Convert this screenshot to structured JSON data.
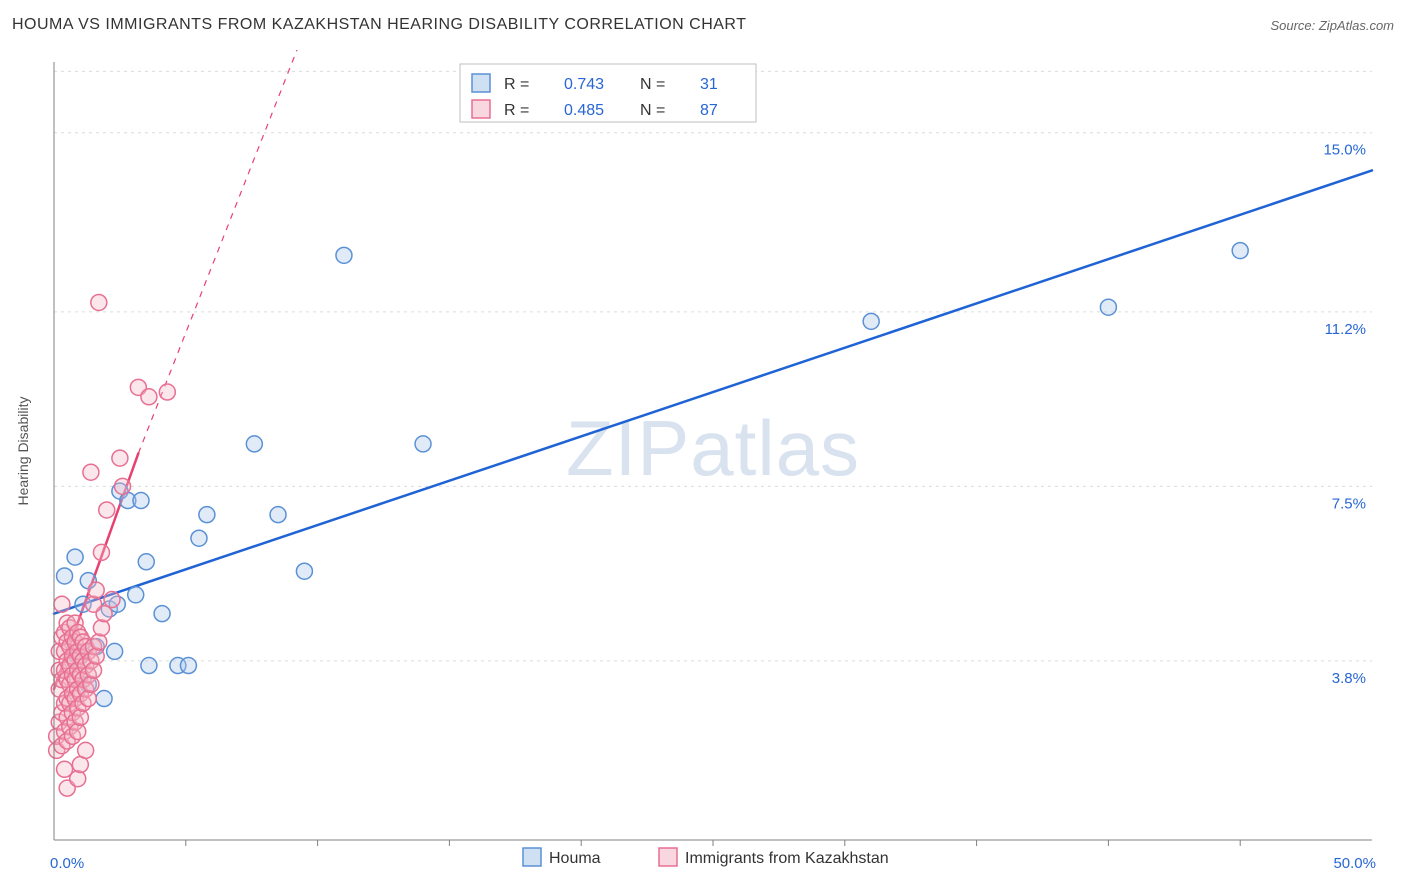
{
  "title": "HOUMA VS IMMIGRANTS FROM KAZAKHSTAN HEARING DISABILITY CORRELATION CHART",
  "source": "Source: ZipAtlas.com",
  "watermark": "ZIPatlas",
  "ylabel": "Hearing Disability",
  "chart": {
    "type": "scatter",
    "background_color": "#ffffff",
    "grid_color": "#dcdcdc",
    "axis_color": "#808080",
    "tick_label_color": "#2766d4",
    "xlim": [
      0,
      50
    ],
    "ylim": [
      0,
      16.5
    ],
    "x_ticks": [
      {
        "v": 0,
        "label": "0.0%"
      },
      {
        "v": 50,
        "label": "50.0%"
      }
    ],
    "x_minor_ticks": [
      5,
      10,
      15,
      20,
      25,
      30,
      35,
      40,
      45
    ],
    "y_gridlines": [
      {
        "v": 3.8,
        "label": "3.8%"
      },
      {
        "v": 7.5,
        "label": "7.5%"
      },
      {
        "v": 11.2,
        "label": "11.2%"
      },
      {
        "v": 15.0,
        "label": "15.0%"
      },
      {
        "v": 16.3,
        "label": ""
      }
    ],
    "marker_radius": 8,
    "marker_fill_opacity": 0.35,
    "marker_stroke_width": 1.5,
    "trend_line_width_solid": 2.5,
    "trend_line_width_dash": 1.2,
    "series": [
      {
        "name": "Houma",
        "color_stroke": "#5a91d6",
        "color_fill": "#a9c6ea",
        "trend_color": "#1f63d4",
        "R": "0.743",
        "N": "31",
        "trend": {
          "x1": 0,
          "y1": 4.8,
          "x2": 50,
          "y2": 14.2,
          "dash_after_x": 50
        },
        "points": [
          [
            0.4,
            5.6
          ],
          [
            0.8,
            6.0
          ],
          [
            0.9,
            3.9
          ],
          [
            1.0,
            3.9
          ],
          [
            1.1,
            5.0
          ],
          [
            1.3,
            5.5
          ],
          [
            1.3,
            3.3
          ],
          [
            1.6,
            4.1
          ],
          [
            1.9,
            3.0
          ],
          [
            2.1,
            4.9
          ],
          [
            2.3,
            4.0
          ],
          [
            2.4,
            5.0
          ],
          [
            2.5,
            7.4
          ],
          [
            2.8,
            7.2
          ],
          [
            3.1,
            5.2
          ],
          [
            3.3,
            7.2
          ],
          [
            3.5,
            5.9
          ],
          [
            3.6,
            3.7
          ],
          [
            4.1,
            4.8
          ],
          [
            4.7,
            3.7
          ],
          [
            5.1,
            3.7
          ],
          [
            5.5,
            6.4
          ],
          [
            5.8,
            6.9
          ],
          [
            7.6,
            8.4
          ],
          [
            8.5,
            6.9
          ],
          [
            9.5,
            5.7
          ],
          [
            11.0,
            12.4
          ],
          [
            14.0,
            8.4
          ],
          [
            31.0,
            11.0
          ],
          [
            40.0,
            11.3
          ],
          [
            45.0,
            12.5
          ]
        ]
      },
      {
        "name": "Immigrants from Kazakhstan",
        "color_stroke": "#e86f92",
        "color_fill": "#f4b6c7",
        "trend_color": "#e8416f",
        "R": "0.485",
        "N": "87",
        "trend": {
          "x1": 0,
          "y1": 3.2,
          "x2": 3.2,
          "y2": 8.2,
          "dash_to_x": 11.5,
          "dash_to_y": 20
        },
        "points": [
          [
            0.1,
            1.9
          ],
          [
            0.1,
            2.2
          ],
          [
            0.2,
            2.5
          ],
          [
            0.2,
            3.2
          ],
          [
            0.2,
            3.6
          ],
          [
            0.2,
            4.0
          ],
          [
            0.3,
            2.0
          ],
          [
            0.3,
            2.7
          ],
          [
            0.3,
            3.4
          ],
          [
            0.3,
            4.3
          ],
          [
            0.3,
            5.0
          ],
          [
            0.4,
            1.5
          ],
          [
            0.4,
            2.3
          ],
          [
            0.4,
            2.9
          ],
          [
            0.4,
            3.6
          ],
          [
            0.4,
            4.0
          ],
          [
            0.4,
            4.4
          ],
          [
            0.5,
            1.1
          ],
          [
            0.5,
            2.1
          ],
          [
            0.5,
            2.6
          ],
          [
            0.5,
            3.0
          ],
          [
            0.5,
            3.4
          ],
          [
            0.5,
            3.8
          ],
          [
            0.5,
            4.2
          ],
          [
            0.5,
            4.6
          ],
          [
            0.6,
            2.4
          ],
          [
            0.6,
            2.9
          ],
          [
            0.6,
            3.3
          ],
          [
            0.6,
            3.7
          ],
          [
            0.6,
            4.1
          ],
          [
            0.6,
            4.5
          ],
          [
            0.7,
            2.2
          ],
          [
            0.7,
            2.7
          ],
          [
            0.7,
            3.1
          ],
          [
            0.7,
            3.5
          ],
          [
            0.7,
            3.9
          ],
          [
            0.7,
            4.3
          ],
          [
            0.8,
            2.5
          ],
          [
            0.8,
            3.0
          ],
          [
            0.8,
            3.4
          ],
          [
            0.8,
            3.8
          ],
          [
            0.8,
            4.2
          ],
          [
            0.8,
            4.6
          ],
          [
            0.9,
            2.3
          ],
          [
            0.9,
            2.8
          ],
          [
            0.9,
            3.2
          ],
          [
            0.9,
            3.6
          ],
          [
            0.9,
            4.0
          ],
          [
            0.9,
            4.4
          ],
          [
            1.0,
            2.6
          ],
          [
            1.0,
            3.1
          ],
          [
            1.0,
            3.5
          ],
          [
            1.0,
            3.9
          ],
          [
            1.0,
            4.3
          ],
          [
            1.1,
            2.9
          ],
          [
            1.1,
            3.4
          ],
          [
            1.1,
            3.8
          ],
          [
            1.1,
            4.2
          ],
          [
            1.2,
            3.2
          ],
          [
            1.2,
            3.7
          ],
          [
            1.2,
            4.1
          ],
          [
            1.3,
            3.0
          ],
          [
            1.3,
            3.5
          ],
          [
            1.3,
            4.0
          ],
          [
            1.4,
            3.3
          ],
          [
            1.4,
            3.8
          ],
          [
            1.5,
            3.6
          ],
          [
            1.5,
            4.1
          ],
          [
            1.6,
            3.9
          ],
          [
            1.7,
            4.2
          ],
          [
            1.8,
            4.5
          ],
          [
            1.9,
            4.8
          ],
          [
            0.9,
            1.3
          ],
          [
            1.0,
            1.6
          ],
          [
            1.2,
            1.9
          ],
          [
            1.4,
            7.8
          ],
          [
            1.5,
            5.0
          ],
          [
            1.6,
            5.3
          ],
          [
            1.7,
            11.4
          ],
          [
            1.8,
            6.1
          ],
          [
            2.0,
            7.0
          ],
          [
            2.2,
            5.1
          ],
          [
            2.5,
            8.1
          ],
          [
            2.6,
            7.5
          ],
          [
            3.2,
            9.6
          ],
          [
            3.6,
            9.4
          ],
          [
            4.3,
            9.5
          ]
        ]
      }
    ]
  },
  "legend_stats": {
    "border_color": "#bfbfbf",
    "bg_color": "#ffffff",
    "R_label": "R  =",
    "N_label": "N  ="
  },
  "bottom_legend": {
    "items": [
      "Houma",
      "Immigrants from Kazakhstan"
    ]
  }
}
